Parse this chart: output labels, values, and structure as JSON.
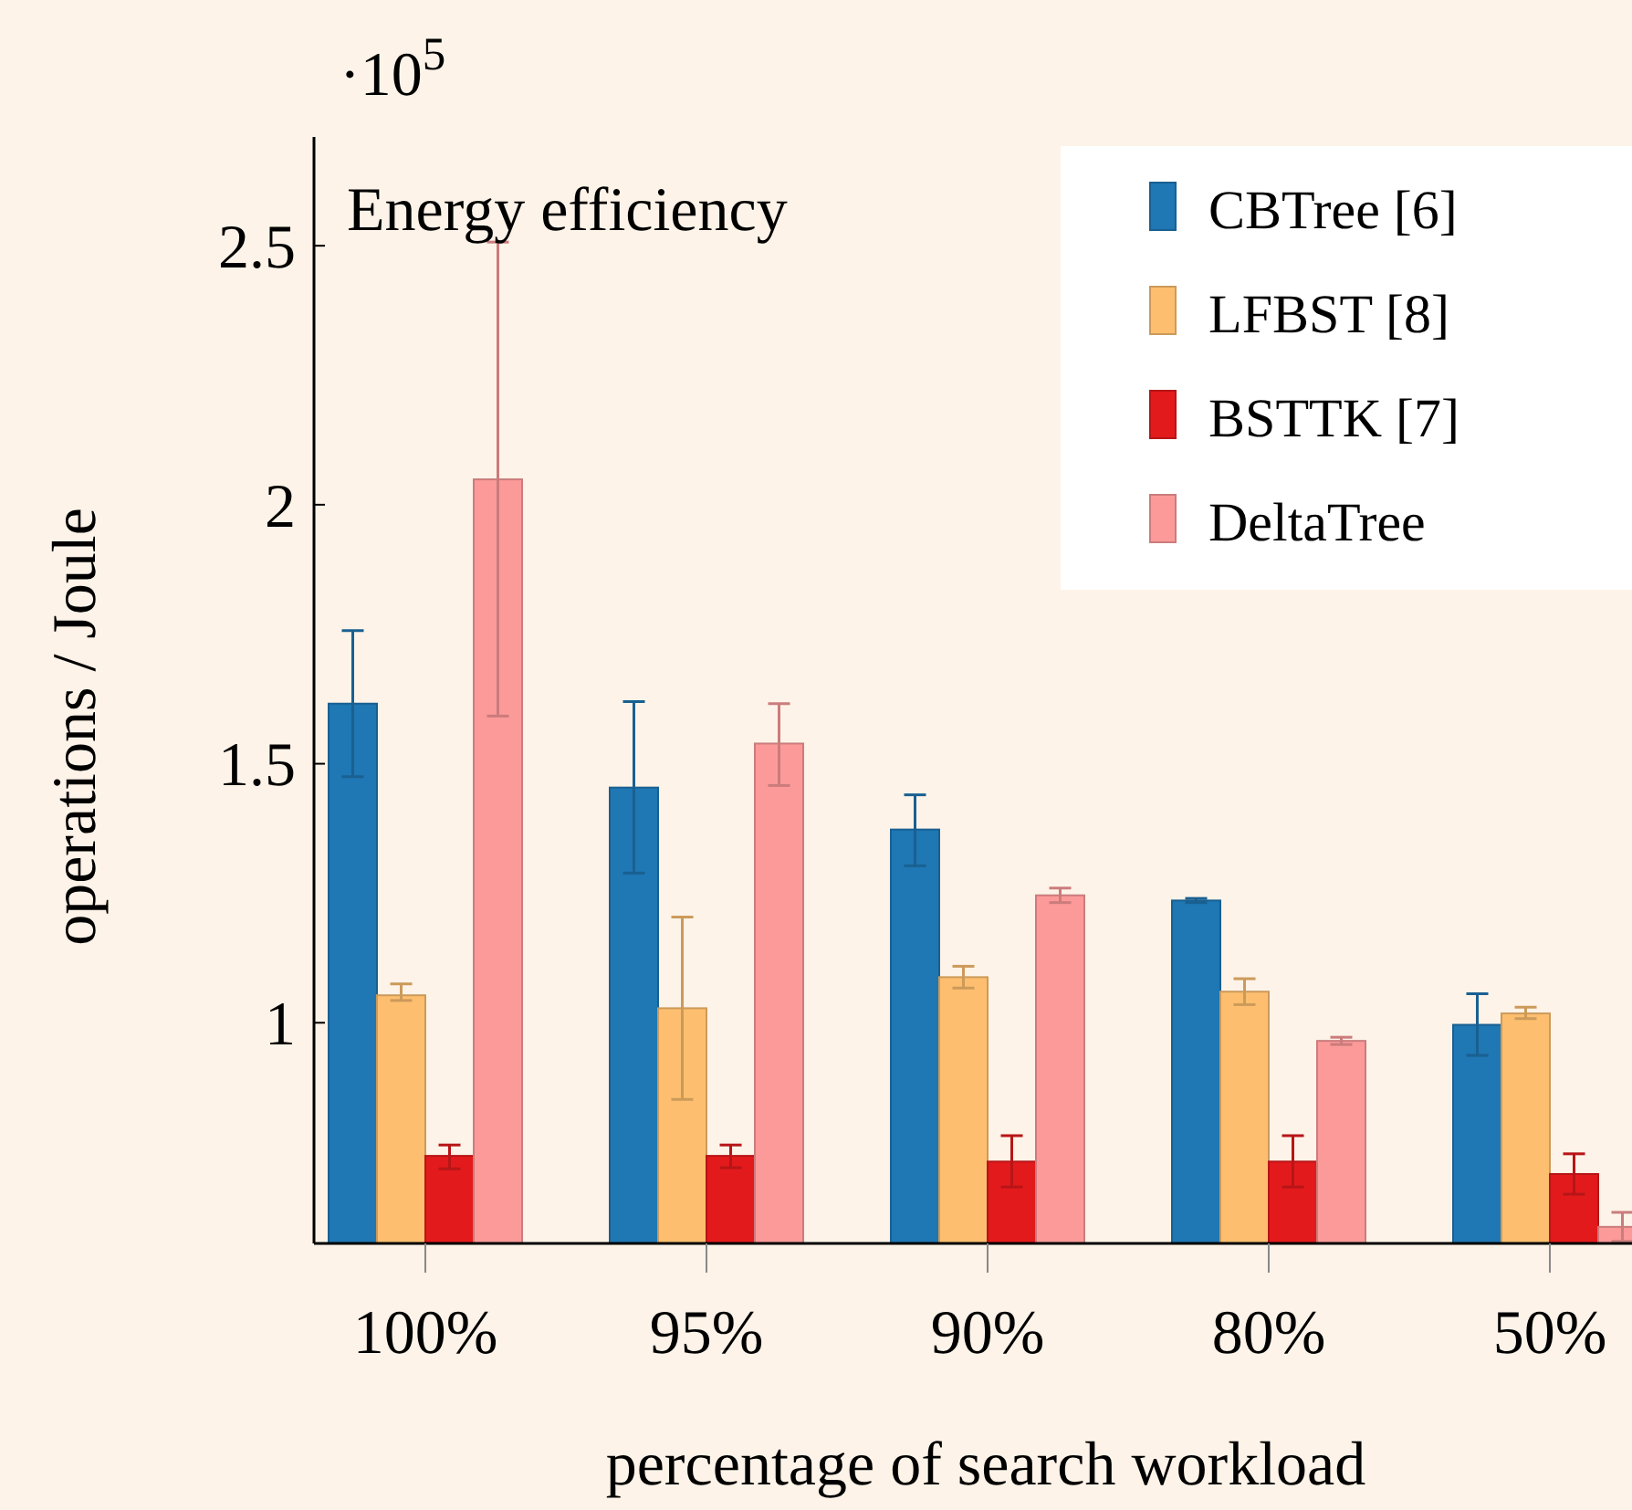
{
  "chart_data": {
    "type": "bar",
    "title": "Energy efficiency",
    "xlabel": "percentage of search workload",
    "ylabel": "operations / Joule",
    "annotations": [
      "·10$^{5}$"
    ],
    "categories": [
      "100%",
      "95%",
      "90%",
      "80%",
      "50%"
    ],
    "series": [
      {
        "name": "CBTree [6]",
        "color": "#1f77b4",
        "values": [
          1.616,
          1.454,
          1.373,
          1.236,
          0.996
        ],
        "errors": [
          [
            1.475,
            1.757
          ],
          [
            1.289,
            1.62
          ],
          [
            1.303,
            1.44
          ],
          [
            1.232,
            1.24
          ],
          [
            0.937,
            1.056
          ]
        ]
      },
      {
        "name": "LFBST [8]",
        "color": "#fdbf6f",
        "values": [
          1.053,
          1.028,
          1.088,
          1.06,
          1.018
        ],
        "errors": [
          [
            1.043,
            1.075
          ],
          [
            0.852,
            1.204
          ],
          [
            1.067,
            1.109
          ],
          [
            1.035,
            1.085
          ],
          [
            1.008,
            1.03
          ]
        ]
      },
      {
        "name": "BSTTK [7]",
        "color": "#e31a1c",
        "values": [
          0.743,
          0.743,
          0.732,
          0.732,
          0.708
        ],
        "errors": [
          [
            0.718,
            0.764
          ],
          [
            0.72,
            0.764
          ],
          [
            0.683,
            0.782
          ],
          [
            0.683,
            0.782
          ],
          [
            0.669,
            0.747
          ]
        ]
      },
      {
        "name": "DeltaTree",
        "color": "#fb9a99",
        "values": [
          2.049,
          1.539,
          1.246,
          0.965,
          0.606
        ],
        "errors": [
          [
            1.592,
            2.507
          ],
          [
            1.458,
            1.616
          ],
          [
            1.232,
            1.26
          ],
          [
            0.958,
            0.972
          ],
          [
            0.578,
            0.634
          ]
        ]
      }
    ],
    "ylim": [
      0.574,
      2.71
    ],
    "yticks": [
      1,
      1.5,
      2,
      2.5
    ],
    "grid": false,
    "legend": "top right"
  }
}
